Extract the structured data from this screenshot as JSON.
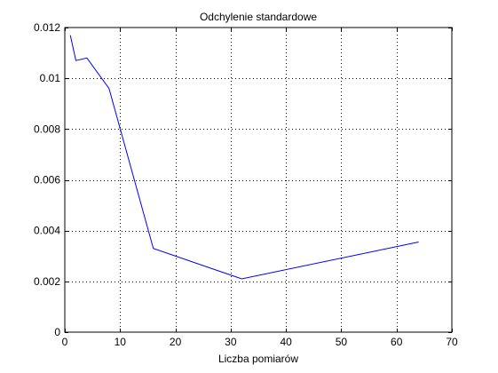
{
  "chart_data": {
    "type": "line",
    "title": "Odchylenie standardowe",
    "xlabel": "Liczba pomiarów",
    "ylabel": "",
    "xlim": [
      0,
      70
    ],
    "ylim": [
      0,
      0.012
    ],
    "xticks": [
      0,
      10,
      20,
      30,
      40,
      50,
      60,
      70
    ],
    "yticks": [
      0,
      0.002,
      0.004,
      0.006,
      0.008,
      0.01,
      0.012
    ],
    "xtick_labels": [
      "0",
      "10",
      "20",
      "30",
      "40",
      "50",
      "60",
      "70"
    ],
    "ytick_labels": [
      "0",
      "0.002",
      "0.004",
      "0.006",
      "0.008",
      "0.01",
      "0.012"
    ],
    "grid": true,
    "series": [
      {
        "color": "#0000ff",
        "x": [
          1,
          2,
          4,
          8,
          16,
          32,
          64
        ],
        "y": [
          0.0117,
          0.0107,
          0.0108,
          0.0096,
          0.0033,
          0.0021,
          0.00355
        ]
      }
    ]
  }
}
